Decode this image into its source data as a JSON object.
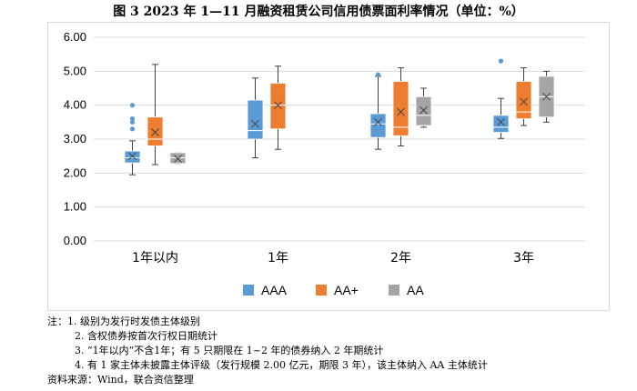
{
  "title": "图 3 2023 年 1—11 月融资租赁公司信用债票面利率情况（单位：%）",
  "notes": {
    "label": "注：",
    "lines": [
      "1.  级别为发行时发债主体级别",
      "2.  含权债券按首次行权日期统计",
      "3. “1年以内”不含1年；有 5 只期限在 1~2 年的债券纳入 2 年期统计",
      "4.  有 1 家主体未披露主体评级（发行规模 2.00 亿元，期限 3 年），该主体纳入 AA 主体统计"
    ],
    "source": "资料来源：Wind，联合资信整理"
  },
  "chart_data": {
    "type": "boxplot",
    "categories": [
      "1年以内",
      "1年",
      "2年",
      "3年"
    ],
    "ylim": [
      0,
      6
    ],
    "yticks": [
      "0.00",
      "1.00",
      "2.00",
      "3.00",
      "4.00",
      "5.00",
      "6.00"
    ],
    "legend_position": "bottom",
    "grid": true,
    "series": [
      {
        "name": "AAA",
        "color": "#5b9bd5",
        "boxes": [
          {
            "min": 1.95,
            "q1": 2.3,
            "median": 2.45,
            "q3": 2.65,
            "max": 2.95,
            "mean": 2.5,
            "outliers": [
              3.3,
              3.5,
              3.6,
              4.0
            ]
          },
          {
            "min": 2.45,
            "q1": 3.0,
            "median": 3.25,
            "q3": 4.15,
            "max": 4.8,
            "mean": 3.45,
            "outliers": []
          },
          {
            "min": 2.7,
            "q1": 3.05,
            "median": 3.45,
            "q3": 3.75,
            "max": 4.85,
            "mean": 3.5,
            "outliers": [
              4.9
            ]
          },
          {
            "min": 3.02,
            "q1": 3.2,
            "median": 3.35,
            "q3": 3.7,
            "max": 4.2,
            "mean": 3.5,
            "outliers": [
              5.3
            ]
          }
        ]
      },
      {
        "name": "AA+",
        "color": "#ed7d31",
        "boxes": [
          {
            "min": 2.25,
            "q1": 2.8,
            "median": 3.0,
            "q3": 3.65,
            "max": 5.2,
            "mean": 3.2,
            "outliers": []
          },
          {
            "min": 2.7,
            "q1": 3.3,
            "median": 4.0,
            "q3": 4.65,
            "max": 5.15,
            "mean": 4.0,
            "outliers": []
          },
          {
            "min": 2.8,
            "q1": 3.1,
            "median": 3.35,
            "q3": 4.7,
            "max": 5.1,
            "mean": 3.8,
            "outliers": []
          },
          {
            "min": 3.4,
            "q1": 3.6,
            "median": 3.8,
            "q3": 4.7,
            "max": 5.1,
            "mean": 4.1,
            "outliers": []
          }
        ]
      },
      {
        "name": "AA",
        "color": "#a5a5a5",
        "boxes": [
          {
            "min": 2.28,
            "q1": 2.28,
            "median": 2.45,
            "q3": 2.6,
            "max": 2.6,
            "mean": 2.42,
            "outliers": []
          },
          null,
          {
            "min": 3.35,
            "q1": 3.4,
            "median": 3.7,
            "q3": 4.25,
            "max": 4.5,
            "mean": 3.85,
            "outliers": []
          },
          {
            "min": 3.5,
            "q1": 3.65,
            "median": 4.25,
            "q3": 4.85,
            "max": 5.0,
            "mean": 4.25,
            "outliers": []
          }
        ]
      }
    ]
  }
}
